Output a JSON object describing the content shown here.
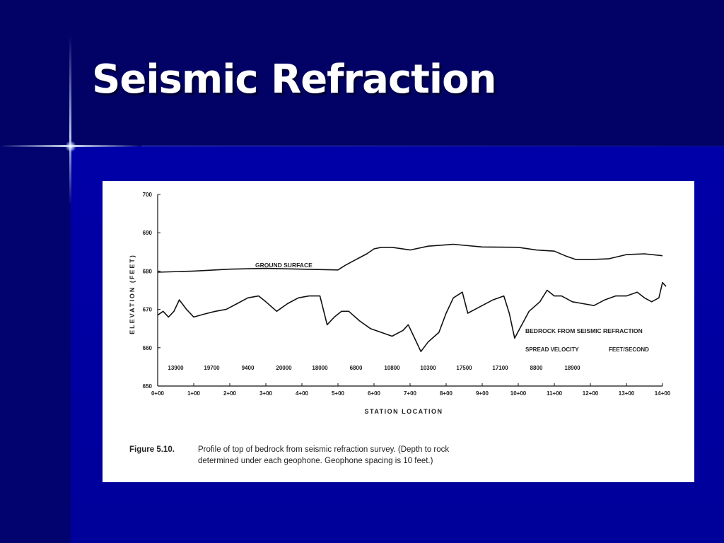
{
  "slide": {
    "title": "Seismic Refraction"
  },
  "chart_data": {
    "type": "line",
    "xlabel": "STATION LOCATION",
    "ylabel": "ELEVATION  (FEET)",
    "xlim": [
      0,
      14
    ],
    "ylim": [
      650,
      700
    ],
    "x_tick_labels": [
      "0+00",
      "1+00",
      "2+00",
      "3+00",
      "4+00",
      "5+00",
      "6+00",
      "7+00",
      "8+00",
      "9+00",
      "10+00",
      "11+00",
      "12+00",
      "13+00",
      "14+00"
    ],
    "y_tick_labels": [
      "650",
      "660",
      "670",
      "680",
      "690",
      "700"
    ],
    "series": [
      {
        "name": "GROUND SURFACE",
        "x": [
          0,
          1,
          2,
          3,
          4,
          5,
          5.2,
          5.5,
          5.8,
          6.0,
          6.2,
          6.5,
          7.0,
          7.5,
          8.2,
          9.0,
          10.0,
          10.5,
          11.0,
          11.3,
          11.6,
          12.0,
          12.5,
          13.0,
          13.5,
          14.0
        ],
        "y": [
          679.7,
          680.0,
          680.5,
          680.7,
          680.5,
          680.3,
          681.5,
          683.0,
          684.5,
          685.8,
          686.2,
          686.2,
          685.5,
          686.5,
          687.0,
          686.3,
          686.2,
          685.5,
          685.2,
          684.0,
          683.0,
          683.0,
          683.2,
          684.3,
          684.5,
          684.0
        ]
      },
      {
        "name": "BEDROCK FROM SEISMIC REFRACTION",
        "x": [
          0,
          0.15,
          0.3,
          0.45,
          0.6,
          0.8,
          1.0,
          1.3,
          1.6,
          1.9,
          2.2,
          2.5,
          2.8,
          3.0,
          3.3,
          3.6,
          3.9,
          4.2,
          4.5,
          4.7,
          4.9,
          5.1,
          5.3,
          5.6,
          5.9,
          6.2,
          6.5,
          6.8,
          6.95,
          7.1,
          7.3,
          7.5,
          7.8,
          8.0,
          8.2,
          8.45,
          8.6,
          8.8,
          9.0,
          9.3,
          9.6,
          9.75,
          9.9,
          10.1,
          10.3,
          10.6,
          10.8,
          11.0,
          11.2,
          11.5,
          11.8,
          12.1,
          12.4,
          12.7,
          13.0,
          13.3,
          13.5,
          13.7,
          13.9,
          14.0,
          14.1
        ],
        "y": [
          668.5,
          669.5,
          668.0,
          669.5,
          672.5,
          670.0,
          668.0,
          668.8,
          669.5,
          670.0,
          671.5,
          673.0,
          673.5,
          672.0,
          669.5,
          671.5,
          673.0,
          673.5,
          673.5,
          666.0,
          668.0,
          669.5,
          669.5,
          667.0,
          665.0,
          664.0,
          663.0,
          664.5,
          666.0,
          663.0,
          659.0,
          661.5,
          664.0,
          669.0,
          673.0,
          674.5,
          669.0,
          670.0,
          671.0,
          672.5,
          673.5,
          669.0,
          662.5,
          666.0,
          669.5,
          672.0,
          675.0,
          673.5,
          673.5,
          672.0,
          671.5,
          671.0,
          672.5,
          673.5,
          673.5,
          674.5,
          673.0,
          672.0,
          673.0,
          677.0,
          676.0
        ]
      }
    ],
    "annotations": {
      "ground_label": "GROUND  SURFACE",
      "bedrock_label": "BEDROCK  FROM  SEISMIC  REFRACTION",
      "velocity_label": "SPREAD VELOCITY",
      "units_label": "FEET/SECOND"
    },
    "spread_velocities": [
      {
        "x": 0.5,
        "value": "13900"
      },
      {
        "x": 1.5,
        "value": "19700"
      },
      {
        "x": 2.5,
        "value": "9400"
      },
      {
        "x": 3.5,
        "value": "20000"
      },
      {
        "x": 4.5,
        "value": "18000"
      },
      {
        "x": 5.5,
        "value": "6800"
      },
      {
        "x": 6.5,
        "value": "10800"
      },
      {
        "x": 7.5,
        "value": "10300"
      },
      {
        "x": 8.5,
        "value": "17500"
      },
      {
        "x": 9.5,
        "value": "17100"
      },
      {
        "x": 10.5,
        "value": "8800"
      },
      {
        "x": 11.5,
        "value": "18900"
      }
    ],
    "grid": false,
    "line_color": "#111111"
  },
  "caption": {
    "label": "Figure 5.10.",
    "text": "Profile of top of bedrock from seismic refraction survey. (Depth to rock determined under each geophone. Geophone spacing is 10 feet.)"
  }
}
